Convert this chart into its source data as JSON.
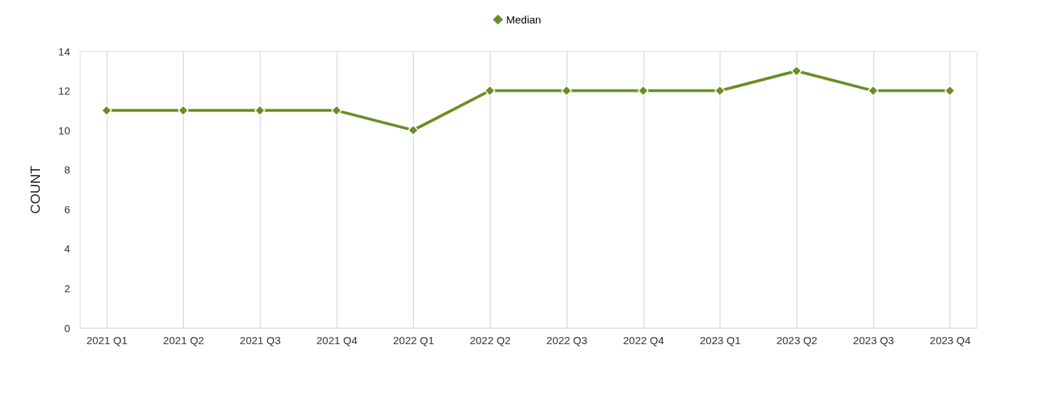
{
  "chart_data": {
    "type": "line",
    "ylabel": "COUNT",
    "categories": [
      "2021 Q1",
      "2021 Q2",
      "2021 Q3",
      "2021 Q4",
      "2022 Q1",
      "2022 Q2",
      "2022 Q3",
      "2022 Q4",
      "2023 Q1",
      "2023 Q2",
      "2023 Q3",
      "2023 Q4"
    ],
    "series": [
      {
        "name": "Median",
        "color": "#6b8e23",
        "values": [
          11,
          11,
          11,
          11,
          10,
          12,
          12,
          12,
          12,
          13,
          12,
          12
        ]
      }
    ],
    "ylim": [
      0,
      14
    ],
    "yticks": [
      0,
      2,
      4,
      6,
      8,
      10,
      12,
      14
    ],
    "grid": "x",
    "legend": "top",
    "marker": "diamond",
    "line_style": "solid"
  }
}
